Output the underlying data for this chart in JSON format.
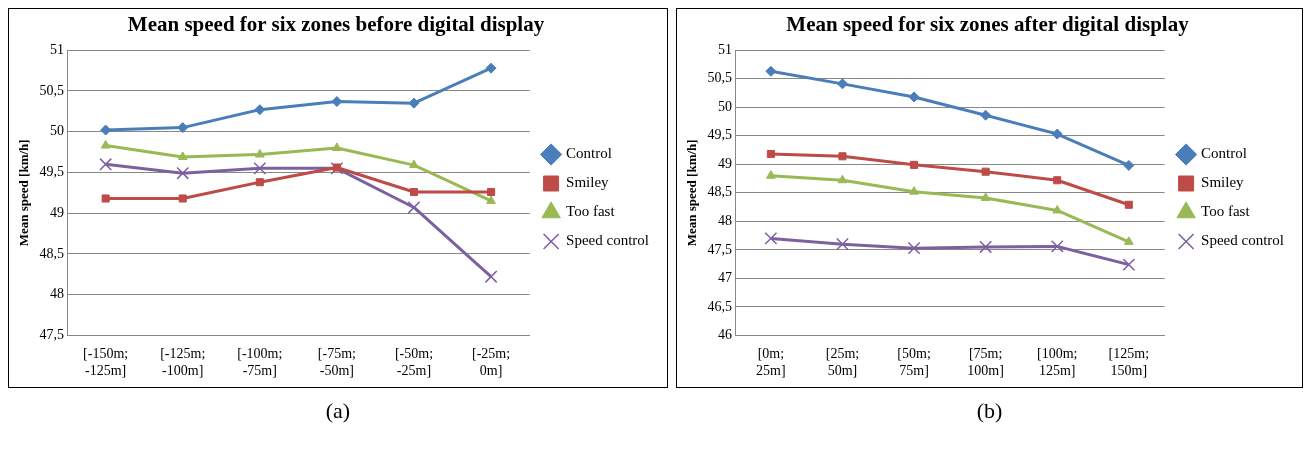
{
  "chart_data": [
    {
      "type": "line",
      "title": "Mean speed for six zones before digital display",
      "ylabel": "Mean speed [km/h]",
      "categories": [
        "[-150m; -125m]",
        "[-125m; -100m]",
        "[-100m; -75m]",
        "[-75m; -50m]",
        "[-50m; -25m]",
        "[-25m; 0m]"
      ],
      "series": [
        {
          "name": "Control",
          "color": "#4a7ebb",
          "marker": "diamond",
          "values": [
            50.02,
            50.05,
            50.27,
            50.37,
            50.35,
            50.78
          ]
        },
        {
          "name": "Smiley",
          "color": "#be4b48",
          "marker": "square",
          "values": [
            49.18,
            49.18,
            49.38,
            49.56,
            49.26,
            49.26
          ]
        },
        {
          "name": "Too fast",
          "color": "#98b954",
          "marker": "triangle",
          "values": [
            49.83,
            49.69,
            49.72,
            49.8,
            49.59,
            49.15
          ]
        },
        {
          "name": "Speed control",
          "color": "#7d60a0",
          "marker": "cross",
          "values": [
            49.6,
            49.49,
            49.55,
            49.55,
            49.07,
            48.22
          ]
        }
      ],
      "ylim": [
        47.5,
        51
      ],
      "yticks": [
        {
          "value": 47.5,
          "label": "47,5"
        },
        48,
        {
          "value": 48.5,
          "label": "48,5"
        },
        49,
        {
          "value": 49.5,
          "label": "49,5"
        },
        50,
        {
          "value": 50.5,
          "label": "50,5"
        },
        51
      ],
      "grid": "y",
      "legend": "right",
      "annotations": [
        "(a)"
      ]
    },
    {
      "type": "line",
      "title": "Mean speed for six zones after digital display",
      "ylabel": "Mean speed [km/h]",
      "categories": [
        "[0m; 25m]",
        "[25m; 50m]",
        "[50m; 75m]",
        "[75m; 100m]",
        "[100m; 125m]",
        "[125m; 150m]"
      ],
      "series": [
        {
          "name": "Control",
          "color": "#4a7ebb",
          "marker": "diamond",
          "values": [
            50.63,
            50.41,
            50.18,
            49.86,
            49.53,
            48.98
          ]
        },
        {
          "name": "Smiley",
          "color": "#be4b48",
          "marker": "square",
          "values": [
            49.18,
            49.14,
            48.99,
            48.87,
            48.72,
            48.29
          ]
        },
        {
          "name": "Too fast",
          "color": "#98b954",
          "marker": "triangle",
          "values": [
            48.8,
            48.72,
            48.52,
            48.41,
            48.19,
            47.64
          ]
        },
        {
          "name": "Speed control",
          "color": "#7d60a0",
          "marker": "cross",
          "values": [
            47.7,
            47.6,
            47.53,
            47.55,
            47.56,
            47.24
          ]
        }
      ],
      "ylim": [
        46,
        51
      ],
      "yticks": [
        46,
        {
          "value": 46.5,
          "label": "46,5"
        },
        47,
        {
          "value": 47.5,
          "label": "47,5"
        },
        48,
        {
          "value": 48.5,
          "label": "48,5"
        },
        49,
        {
          "value": 49.5,
          "label": "49,5"
        },
        50,
        {
          "value": 50.5,
          "label": "50,5"
        },
        51
      ],
      "grid": "y",
      "legend": "right",
      "annotations": [
        "(b)"
      ]
    }
  ]
}
